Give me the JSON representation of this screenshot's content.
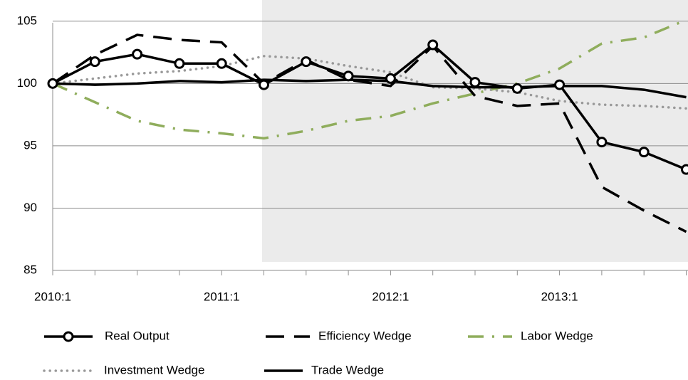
{
  "chart_data": {
    "type": "line",
    "categories": [
      "2010:1",
      null,
      null,
      null,
      "2011:1",
      null,
      null,
      null,
      "2012:1",
      null,
      null,
      null,
      "2013:1",
      null,
      null,
      null
    ],
    "series": [
      {
        "name": "Real Output",
        "color": "#000000",
        "marker": "circle",
        "dash": "none",
        "values": [
          100,
          101.75,
          102.35,
          101.6,
          101.6,
          99.9,
          101.75,
          100.6,
          100.4,
          103.1,
          100.1,
          99.6,
          99.9,
          95.3,
          94.5,
          93.1
        ]
      },
      {
        "name": "Efficiency Wedge",
        "color": "#000000",
        "dash": "26 14",
        "values": [
          100,
          102.3,
          103.9,
          103.5,
          103.3,
          100.0,
          101.9,
          100.3,
          99.8,
          103.0,
          99.0,
          98.2,
          98.4,
          91.7,
          89.8,
          88.1
        ]
      },
      {
        "name": "Labor Wedge",
        "color": "#8fad5c",
        "dash": "22 12 3 12",
        "values": [
          100,
          98.5,
          97.0,
          96.3,
          96.0,
          95.6,
          96.2,
          97.0,
          97.4,
          98.4,
          99.2,
          100.0,
          101.2,
          103.2,
          103.7,
          105.1
        ]
      },
      {
        "name": "Investment Wedge",
        "color": "#999999",
        "dash": "0.1 8",
        "values": [
          100,
          100.4,
          100.8,
          101.0,
          101.4,
          102.2,
          102.0,
          101.4,
          100.9,
          99.7,
          99.6,
          99.3,
          98.6,
          98.3,
          98.2,
          98.0
        ]
      },
      {
        "name": "Trade Wedge",
        "color": "#000000",
        "dash": "none",
        "values": [
          100,
          99.9,
          100.0,
          100.2,
          100.1,
          100.3,
          100.2,
          100.3,
          100.2,
          99.8,
          99.7,
          99.7,
          99.8,
          99.8,
          99.5,
          98.9
        ]
      }
    ],
    "ylim": [
      85,
      106.7
    ],
    "yticks": [
      85,
      90,
      95,
      100,
      105
    ],
    "grid": true,
    "legend": "bottom"
  }
}
